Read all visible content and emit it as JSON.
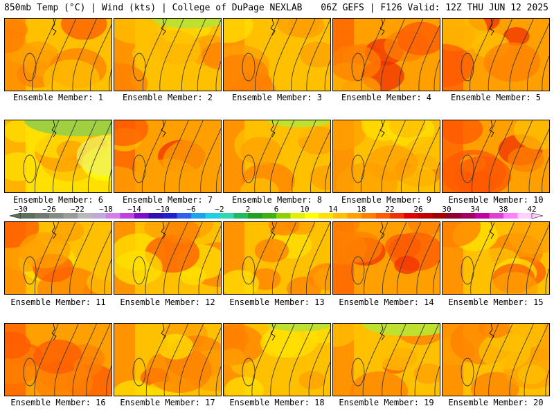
{
  "header": {
    "left": "850mb Temp (°C) | Wind (kts) | College of DuPage NEXLAB",
    "right": "06Z GEFS | F126 Valid: 12Z THU JUN 12 2025"
  },
  "members": [
    {
      "label": "Ensemble Member: 1",
      "intensity": 0.55,
      "cold": 0.0
    },
    {
      "label": "Ensemble Member: 2",
      "intensity": 0.45,
      "cold": 0.25
    },
    {
      "label": "Ensemble Member: 3",
      "intensity": 0.62,
      "cold": 0.0
    },
    {
      "label": "Ensemble Member: 4",
      "intensity": 0.66,
      "cold": 0.0
    },
    {
      "label": "Ensemble Member: 5",
      "intensity": 0.75,
      "cold": 0.0
    },
    {
      "label": "Ensemble Member: 6",
      "intensity": 0.28,
      "cold": 0.7
    },
    {
      "label": "Ensemble Member: 7",
      "intensity": 0.78,
      "cold": 0.0
    },
    {
      "label": "Ensemble Member: 8",
      "intensity": 0.42,
      "cold": 0.1
    },
    {
      "label": "Ensemble Member: 9",
      "intensity": 0.55,
      "cold": 0.0
    },
    {
      "label": "Ensemble Member: 10",
      "intensity": 0.65,
      "cold": 0.0
    },
    {
      "label": "Ensemble Member: 11",
      "intensity": 0.6,
      "cold": 0.0
    },
    {
      "label": "Ensemble Member: 12",
      "intensity": 0.58,
      "cold": 0.0
    },
    {
      "label": "Ensemble Member: 13",
      "intensity": 0.58,
      "cold": 0.0
    },
    {
      "label": "Ensemble Member: 14",
      "intensity": 0.72,
      "cold": 0.0
    },
    {
      "label": "Ensemble Member: 15",
      "intensity": 0.6,
      "cold": 0.0
    },
    {
      "label": "Ensemble Member: 16",
      "intensity": 0.65,
      "cold": 0.0
    },
    {
      "label": "Ensemble Member: 17",
      "intensity": 0.6,
      "cold": 0.0
    },
    {
      "label": "Ensemble Member: 18",
      "intensity": 0.62,
      "cold": 0.15
    },
    {
      "label": "Ensemble Member: 19",
      "intensity": 0.55,
      "cold": 0.45
    },
    {
      "label": "Ensemble Member: 20",
      "intensity": 0.62,
      "cold": 0.0
    }
  ],
  "colorbar": {
    "labels": [
      "−30",
      "−26",
      "−22",
      "−18",
      "−14",
      "−10",
      "−6",
      "−2",
      "2",
      "6",
      "10",
      "14",
      "18",
      "22",
      "26",
      "30",
      "34",
      "38",
      "42"
    ],
    "colors": [
      "#5e6e5e",
      "#707a70",
      "#848a84",
      "#989c98",
      "#b8b8b8",
      "#c0a8d8",
      "#d080e8",
      "#c040e0",
      "#8010c8",
      "#3010b0",
      "#2020d0",
      "#3060f0",
      "#20a0f0",
      "#20d0e0",
      "#30d8b0",
      "#20b860",
      "#20a020",
      "#40b010",
      "#90d000",
      "#e0f000",
      "#ffff00",
      "#ffe000",
      "#ffc000",
      "#ffa000",
      "#ff8000",
      "#ff5a00",
      "#f03000",
      "#e00000",
      "#c00000",
      "#a00000",
      "#900030",
      "#a00060",
      "#c000a0",
      "#e040d0",
      "#ff80ff",
      "#ffd0ff"
    ]
  }
}
